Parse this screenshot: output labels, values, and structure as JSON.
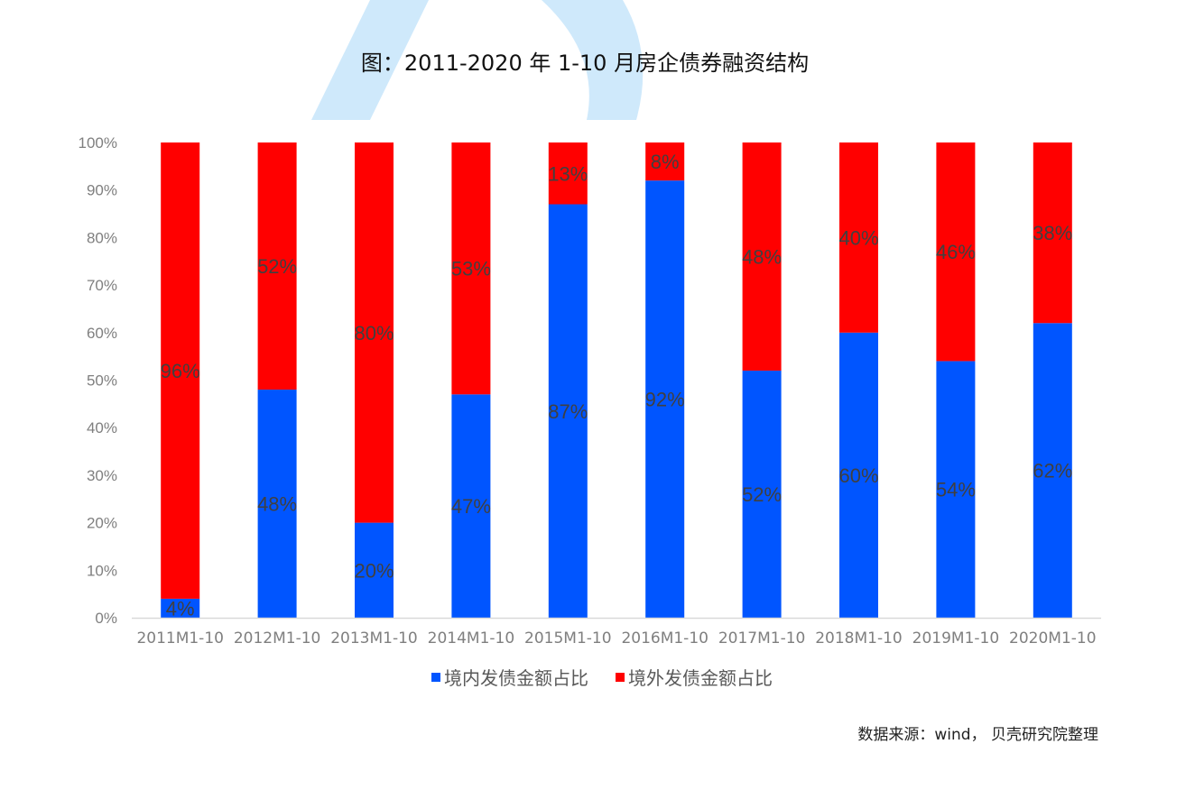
{
  "title": "图：2011-2020 年 1-10 月房企债券融资结构",
  "source": "数据来源：wind， 贝壳研究院整理",
  "colors": {
    "domestic": "#0055ff",
    "overseas": "#ff0000",
    "watermark": "#cfe9fb"
  },
  "chart_data": {
    "type": "bar",
    "stacked": true,
    "categories": [
      "2011M1-10",
      "2012M1-10",
      "2013M1-10",
      "2014M1-10",
      "2015M1-10",
      "2016M1-10",
      "2017M1-10",
      "2018M1-10",
      "2019M1-10",
      "2020M1-10"
    ],
    "series": [
      {
        "name": "境内发债金额占比",
        "values": [
          4,
          48,
          20,
          47,
          87,
          92,
          52,
          60,
          54,
          62
        ],
        "labels": [
          "4%",
          "48%",
          "20%",
          "47%",
          "87%",
          "92%",
          "52%",
          "60%",
          "54%",
          "62%"
        ]
      },
      {
        "name": "境外发债金额占比",
        "values": [
          96,
          52,
          80,
          53,
          13,
          8,
          48,
          40,
          46,
          38
        ],
        "labels": [
          "96%",
          "52%",
          "80%",
          "53%",
          "13%",
          "8%",
          "48%",
          "40%",
          "46%",
          "38%"
        ]
      }
    ],
    "ylim": [
      0,
      100
    ],
    "yticks": [
      "0%",
      "10%",
      "20%",
      "30%",
      "40%",
      "50%",
      "60%",
      "70%",
      "80%",
      "90%",
      "100%"
    ],
    "legend_position": "bottom"
  }
}
